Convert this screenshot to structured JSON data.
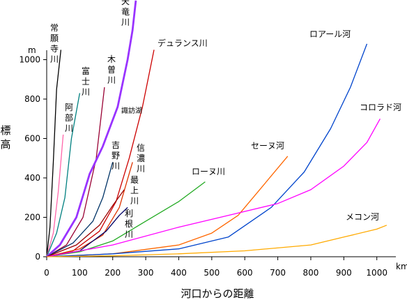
{
  "chart_data": {
    "type": "line",
    "xlabel": "河口からの距離",
    "ylabel": "標高",
    "xunit": "km",
    "yunit": "m",
    "xlim": [
      0,
      1050
    ],
    "ylim": [
      0,
      1100
    ],
    "xticks": [
      0,
      100,
      200,
      300,
      400,
      500,
      600,
      700,
      800,
      900,
      1000
    ],
    "yticks": [
      0,
      200,
      400,
      600,
      800,
      1000
    ],
    "series": [
      {
        "name": "常願寺川",
        "color": "#000000",
        "width": 1.3,
        "label_mode": "vertical",
        "points": [
          [
            0,
            0
          ],
          [
            10,
            150
          ],
          [
            20,
            480
          ],
          [
            30,
            850
          ],
          [
            43,
            1050
          ]
        ]
      },
      {
        "name": "阿部川",
        "color": "#ff66aa",
        "width": 1.3,
        "label_mode": "vertical",
        "points": [
          [
            0,
            0
          ],
          [
            20,
            120
          ],
          [
            35,
            330
          ],
          [
            50,
            620
          ]
        ]
      },
      {
        "name": "富士川",
        "color": "#008080",
        "width": 1.3,
        "label_mode": "vertical",
        "points": [
          [
            0,
            0
          ],
          [
            30,
            120
          ],
          [
            55,
            300
          ],
          [
            75,
            600
          ],
          [
            100,
            830
          ]
        ]
      },
      {
        "name": "木曽川",
        "color": "#990033",
        "width": 1.3,
        "label_mode": "vertical",
        "points": [
          [
            0,
            0
          ],
          [
            60,
            60
          ],
          [
            110,
            200
          ],
          [
            150,
            500
          ],
          [
            175,
            860
          ]
        ]
      },
      {
        "name": "天竜川",
        "color": "#9933ff",
        "width": 2.8,
        "label_mode": "vertical",
        "points": [
          [
            0,
            0
          ],
          [
            40,
            60
          ],
          [
            90,
            200
          ],
          [
            130,
            420
          ],
          [
            170,
            560
          ],
          [
            215,
            760
          ],
          [
            245,
            1000
          ],
          [
            260,
            1150
          ],
          [
            270,
            1300
          ]
        ]
      },
      {
        "name": "デュランス川",
        "color": "#cc0000",
        "width": 1.3,
        "label_mode": "horizontal",
        "points": [
          [
            0,
            0
          ],
          [
            80,
            30
          ],
          [
            160,
            130
          ],
          [
            210,
            280
          ],
          [
            250,
            500
          ],
          [
            290,
            760
          ],
          [
            325,
            1050
          ]
        ]
      },
      {
        "name": "諏訪湖",
        "color": "#9933ff",
        "width": 0,
        "label_mode": "annotation",
        "points": []
      },
      {
        "name": "吉野川",
        "color": "#003366",
        "width": 1.3,
        "label_mode": "vertical",
        "points": [
          [
            0,
            0
          ],
          [
            80,
            70
          ],
          [
            140,
            180
          ],
          [
            170,
            300
          ],
          [
            200,
            480
          ]
        ]
      },
      {
        "name": "信濃川",
        "color": "#dd3300",
        "width": 1.3,
        "label_mode": "vertical",
        "points": [
          [
            0,
            0
          ],
          [
            100,
            40
          ],
          [
            170,
            110
          ],
          [
            220,
            250
          ],
          [
            260,
            480
          ]
        ]
      },
      {
        "name": "最上川",
        "color": "#990000",
        "width": 1.3,
        "label_mode": "vertical",
        "points": [
          [
            0,
            0
          ],
          [
            90,
            60
          ],
          [
            160,
            160
          ],
          [
            200,
            260
          ],
          [
            235,
            340
          ]
        ]
      },
      {
        "name": "利根川",
        "color": "#000066",
        "width": 1.3,
        "label_mode": "vertical",
        "points": [
          [
            0,
            0
          ],
          [
            100,
            30
          ],
          [
            180,
            130
          ],
          [
            220,
            210
          ],
          [
            245,
            250
          ]
        ]
      },
      {
        "name": "ローヌ川",
        "color": "#22aa22",
        "width": 1.3,
        "label_mode": "horizontal",
        "points": [
          [
            0,
            0
          ],
          [
            100,
            25
          ],
          [
            200,
            80
          ],
          [
            300,
            180
          ],
          [
            400,
            280
          ],
          [
            480,
            380
          ]
        ]
      },
      {
        "name": "セーヌ河",
        "color": "#ff6600",
        "width": 1.3,
        "label_mode": "horizontal",
        "points": [
          [
            0,
            0
          ],
          [
            200,
            15
          ],
          [
            400,
            60
          ],
          [
            500,
            120
          ],
          [
            580,
            210
          ],
          [
            640,
            330
          ],
          [
            730,
            510
          ]
        ]
      },
      {
        "name": "ロアール河",
        "color": "#0044cc",
        "width": 1.3,
        "label_mode": "horizontal",
        "points": [
          [
            0,
            0
          ],
          [
            200,
            15
          ],
          [
            400,
            40
          ],
          [
            550,
            100
          ],
          [
            680,
            250
          ],
          [
            780,
            430
          ],
          [
            860,
            650
          ],
          [
            920,
            860
          ],
          [
            970,
            1080
          ]
        ]
      },
      {
        "name": "コロラド河",
        "color": "#ff00ff",
        "width": 1.3,
        "label_mode": "horizontal",
        "points": [
          [
            0,
            0
          ],
          [
            200,
            60
          ],
          [
            400,
            150
          ],
          [
            550,
            210
          ],
          [
            700,
            270
          ],
          [
            800,
            340
          ],
          [
            900,
            460
          ],
          [
            970,
            580
          ],
          [
            1010,
            700
          ]
        ]
      },
      {
        "name": "メコン河",
        "color": "#ffaa00",
        "width": 1.3,
        "label_mode": "horizontal",
        "points": [
          [
            0,
            0
          ],
          [
            200,
            5
          ],
          [
            400,
            15
          ],
          [
            600,
            30
          ],
          [
            800,
            60
          ],
          [
            900,
            100
          ],
          [
            1000,
            140
          ],
          [
            1030,
            160
          ]
        ]
      }
    ]
  }
}
